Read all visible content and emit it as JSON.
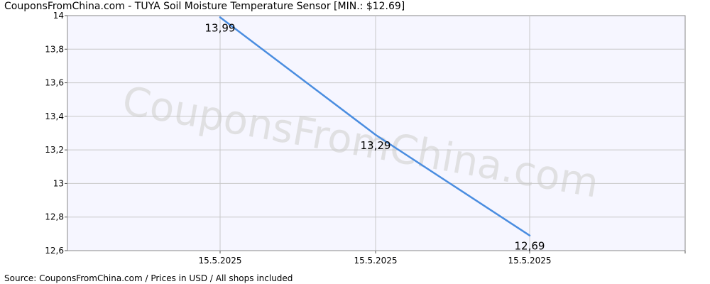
{
  "title": "CouponsFromChina.com - TUYA Soil Moisture Temperature Sensor [MIN.: $12.69]",
  "footer": "Source: CouponsFromChina.com / Prices in USD / All shops included",
  "watermark": "CouponsFromChina.com",
  "colors": {
    "line": "#4a8de0",
    "plot_bg": "#f6f6ff",
    "grid": "#c8c8c8"
  },
  "chart_data": {
    "type": "line",
    "title": "CouponsFromChina.com - TUYA Soil Moisture Temperature Sensor [MIN.: $12.69]",
    "xlabel": "",
    "ylabel": "",
    "ylim": [
      12.6,
      14
    ],
    "yticks": [
      "12,6",
      "12,8",
      "13",
      "13,2",
      "13,4",
      "13,6",
      "13,8",
      "14"
    ],
    "ytick_values": [
      12.6,
      12.8,
      13.0,
      13.2,
      13.4,
      13.6,
      13.8,
      14.0
    ],
    "xticks": [
      "15.5.2025",
      "15.5.2025",
      "15.5.2025"
    ],
    "grid": true,
    "series": [
      {
        "values": [
          13.99,
          13.29,
          12.69
        ],
        "labels": [
          "13,99",
          "13,29",
          "12,69"
        ]
      }
    ]
  }
}
